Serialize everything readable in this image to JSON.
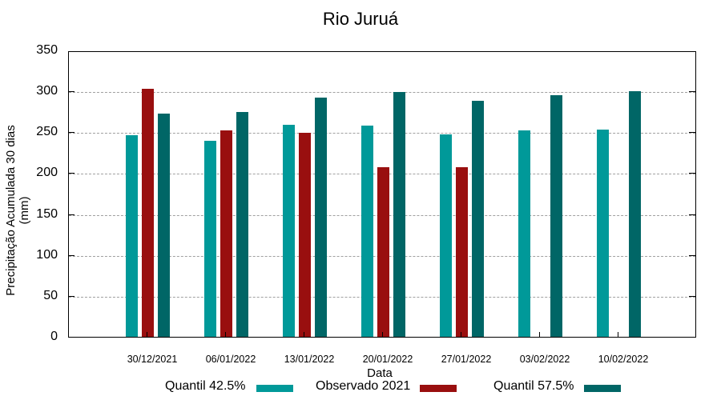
{
  "title": "Rio Juruá",
  "y_axis": {
    "label": "Precipitação Acumulada 30 dias (mm)",
    "ticks": [
      "0",
      "50",
      "100",
      "150",
      "200",
      "250",
      "300",
      "350"
    ]
  },
  "x_axis": {
    "label": "Data",
    "ticks": [
      "30/12/2021",
      "06/01/2022",
      "13/01/2022",
      "20/01/2022",
      "27/01/2022",
      "03/02/2022",
      "10/02/2022"
    ]
  },
  "legend": [
    {
      "label": "Quantil 42.5%",
      "color": "#009999"
    },
    {
      "label": "Observado 2021",
      "color": "#990f0f"
    },
    {
      "label": "Quantil 57.5%",
      "color": "#006666"
    }
  ],
  "chart_data": {
    "type": "bar",
    "title": "Rio Juruá",
    "xlabel": "Data",
    "ylabel": "Precipitação Acumulada 30 dias (mm)",
    "ylim": [
      0,
      350
    ],
    "yticks": [
      0,
      50,
      100,
      150,
      200,
      250,
      300,
      350
    ],
    "grid": "horizontal dashed",
    "legend_position": "bottom",
    "categories": [
      "30/12/2021",
      "06/01/2022",
      "13/01/2022",
      "20/01/2022",
      "27/01/2022",
      "03/02/2022",
      "10/02/2022"
    ],
    "series": [
      {
        "name": "Quantil 42.5%",
        "color": "#009999",
        "values": [
          246,
          240,
          259,
          258,
          247,
          252,
          253
        ]
      },
      {
        "name": "Observado 2021",
        "color": "#990f0f",
        "values": [
          303,
          252,
          249,
          207,
          207,
          null,
          null
        ]
      },
      {
        "name": "Quantil 57.5%",
        "color": "#006666",
        "values": [
          273,
          275,
          292,
          299,
          288,
          295,
          300
        ]
      }
    ]
  }
}
